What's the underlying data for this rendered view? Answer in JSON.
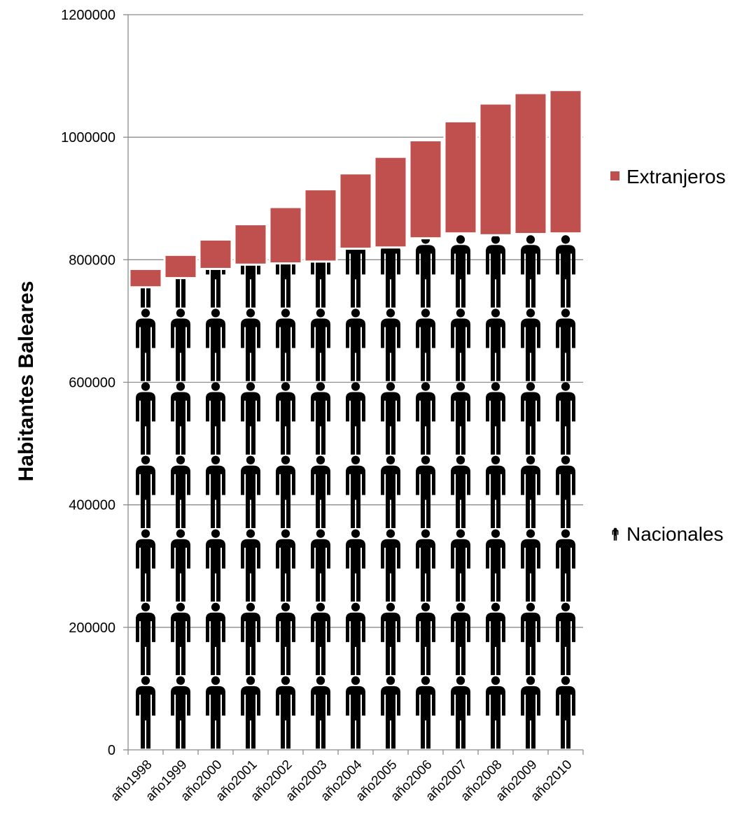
{
  "chart_data": {
    "type": "bar",
    "stacked": true,
    "categories": [
      "año1998",
      "año1999",
      "año2000",
      "año2001",
      "año2002",
      "año2003",
      "año2004",
      "año2005",
      "año2006",
      "año2007",
      "año2008",
      "año2009",
      "año2010"
    ],
    "series": [
      {
        "name": "Nacionales",
        "values": [
          755000,
          770000,
          785000,
          792000,
          794000,
          797000,
          818000,
          820000,
          835000,
          843000,
          840000,
          842000,
          843000
        ],
        "color": "#000000",
        "icon": "person-icon"
      },
      {
        "name": "Extranjeros",
        "values": [
          30000,
          38000,
          48000,
          66000,
          92000,
          118000,
          123000,
          148000,
          160000,
          183000,
          215000,
          230000,
          234000
        ],
        "color": "#C0504D"
      }
    ],
    "xlabel": "",
    "ylabel": "Habitantes Baleares",
    "ylim": [
      0,
      1200000
    ],
    "yticks": [
      0,
      200000,
      400000,
      600000,
      800000,
      1000000,
      1200000
    ],
    "grid": true,
    "legend_position": "right"
  }
}
